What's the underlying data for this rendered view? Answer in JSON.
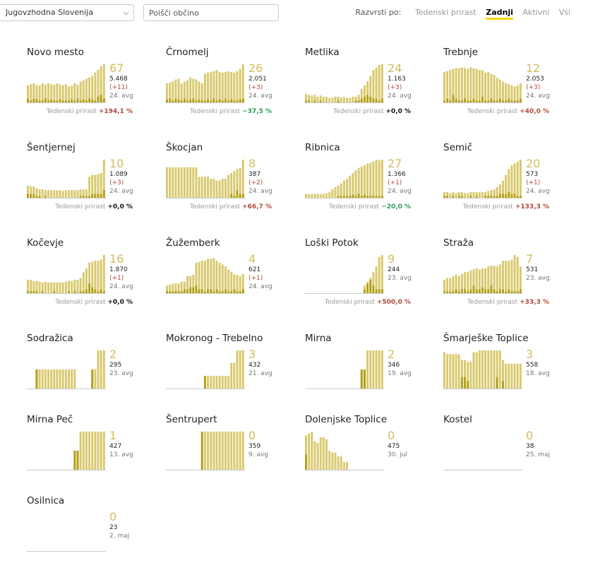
{
  "toolbar": {
    "region": "Jugovzhodna Slovenija",
    "search_placeholder": "Poišči občino",
    "sort_label": "Razvrsti po:",
    "sort_options": [
      {
        "label": "Tedenski prirast",
        "active": false
      },
      {
        "label": "Zadnji",
        "active": true
      },
      {
        "label": "Aktivni",
        "active": false
      },
      {
        "label": "Vsi",
        "active": false
      }
    ]
  },
  "growth_label": "Tedenski prirast",
  "colors": {
    "bar_light": "#d8c96e",
    "bar_dark": "#b59f16",
    "baseline": "#cccccc",
    "big_number": "#d4bc5d"
  },
  "municipalities": [
    {
      "name": "Novo mesto",
      "active": "67",
      "total": "5.468",
      "delta": "(+11)",
      "date": "24. avg",
      "growth": "+194,1 %",
      "bars": [
        0.45,
        0.48,
        0.5,
        0.46,
        0.44,
        0.5,
        0.47,
        0.5,
        0.48,
        0.46,
        0.5,
        0.47,
        0.45,
        0.48,
        0.42,
        0.44,
        0.5,
        0.46,
        0.55,
        0.58,
        0.62,
        0.65,
        0.7,
        0.78,
        0.86,
        0.95,
        1.0
      ],
      "dark": [
        0.1,
        0.05,
        0.1,
        0.08,
        0.05,
        0.05,
        0.1,
        0.05,
        0.08,
        0.05,
        0.05,
        0.08,
        0.05,
        0.05,
        0.05,
        0.08,
        0.05,
        0.1,
        0.05,
        0.08,
        0.05,
        0.1,
        0.08,
        0.05,
        0.15,
        0.2,
        0.1
      ]
    },
    {
      "name": "Črnomelj",
      "active": "26",
      "total": "2.051",
      "delta": "(+3)",
      "date": "24. avg",
      "growth": "−37,5 %",
      "bars": [
        0.5,
        0.52,
        0.55,
        0.6,
        0.62,
        0.5,
        0.55,
        0.58,
        0.65,
        0.62,
        0.6,
        0.55,
        0.5,
        0.75,
        0.78,
        0.8,
        0.82,
        0.85,
        0.8,
        0.78,
        0.8,
        0.82,
        0.8,
        0.78,
        0.82,
        0.88,
        1.0
      ],
      "dark": [
        0.08,
        0.1,
        0.05,
        0.1,
        0.08,
        0.05,
        0.1,
        0.05,
        0.08,
        0.1,
        0.05,
        0.08,
        0.05,
        0.05,
        0.08,
        0.05,
        0.1,
        0.05,
        0.08,
        0.05,
        0.1,
        0.05,
        0.08,
        0.05,
        0.05,
        0.08,
        0.1
      ]
    },
    {
      "name": "Metlika",
      "active": "24",
      "total": "1.163",
      "delta": "(+3)",
      "date": "24. avg",
      "growth": "+0,0 %",
      "bars": [
        0.22,
        0.2,
        0.18,
        0.2,
        0.15,
        0.18,
        0.15,
        0.15,
        0.12,
        0.12,
        0.15,
        0.15,
        0.12,
        0.15,
        0.12,
        0.12,
        0.15,
        0.15,
        0.2,
        0.35,
        0.45,
        0.55,
        0.7,
        0.85,
        0.92,
        0.98,
        1.0
      ],
      "dark": [
        0.05,
        0.05,
        0,
        0.05,
        0,
        0.05,
        0,
        0,
        0,
        0,
        0,
        0.05,
        0,
        0,
        0,
        0,
        0,
        0.05,
        0.05,
        0.1,
        0.15,
        0.2,
        0.15,
        0.1,
        0.1,
        0.05,
        0.1
      ]
    },
    {
      "name": "Trebnje",
      "active": "12",
      "total": "2.053",
      "delta": "(+3)",
      "date": "24. avg",
      "growth": "+40,0 %",
      "bars": [
        0.8,
        0.82,
        0.85,
        0.88,
        0.9,
        0.9,
        0.92,
        0.9,
        0.88,
        0.92,
        0.9,
        0.88,
        0.85,
        0.85,
        0.78,
        0.8,
        0.75,
        0.72,
        0.65,
        0.6,
        0.55,
        0.5,
        0.48,
        0.45,
        0.42,
        0.45,
        0.5
      ],
      "dark": [
        0.05,
        0.1,
        0.05,
        0.2,
        0.1,
        0.05,
        0.05,
        0.1,
        0.05,
        0.05,
        0.1,
        0.05,
        0.05,
        0.15,
        0.05,
        0.05,
        0.1,
        0.05,
        0.05,
        0.1,
        0.05,
        0.05,
        0.1,
        0.05,
        0.05,
        0.05,
        0.1
      ]
    },
    {
      "name": "Šentjernej",
      "active": "10",
      "total": "1.089",
      "delta": "(+3)",
      "date": "24. avg",
      "growth": "+0,0 %",
      "bars": [
        0.32,
        0.3,
        0.3,
        0.25,
        0.22,
        0.22,
        0.2,
        0.2,
        0.2,
        0.2,
        0.2,
        0.2,
        0.18,
        0.2,
        0.2,
        0.2,
        0.2,
        0.2,
        0.22,
        0.22,
        0.22,
        0.55,
        0.6,
        0.6,
        0.62,
        0.65,
        1.0
      ],
      "dark": [
        0.1,
        0.1,
        0.1,
        0.05,
        0.05,
        0,
        0.05,
        0,
        0,
        0,
        0,
        0,
        0,
        0,
        0,
        0,
        0,
        0,
        0.05,
        0.05,
        0.05,
        0.05,
        0.1,
        0.1,
        0.1,
        0.1,
        0.2
      ]
    },
    {
      "name": "Škocjan",
      "active": "8",
      "total": "387",
      "delta": "(+2)",
      "date": "24. avg",
      "growth": "+66,7 %",
      "bars": [
        0.8,
        0.8,
        0.8,
        0.8,
        0.8,
        0.8,
        0.8,
        0.8,
        0.8,
        0.8,
        0.8,
        0.55,
        0.55,
        0.55,
        0.55,
        0.5,
        0.5,
        0.45,
        0.45,
        0.5,
        0.5,
        0.6,
        0.65,
        0.7,
        0.75,
        0.78,
        1.0
      ],
      "dark": [
        0,
        0,
        0,
        0,
        0,
        0,
        0,
        0,
        0,
        0,
        0,
        0,
        0,
        0,
        0,
        0,
        0,
        0,
        0,
        0,
        0,
        0,
        0.1,
        0.05,
        0.2,
        0.1,
        0.1
      ]
    },
    {
      "name": "Ribnica",
      "active": "27",
      "total": "1.366",
      "delta": "(+1)",
      "date": "24. avg",
      "growth": "−20,0 %",
      "bars": [
        0.1,
        0.1,
        0.1,
        0.1,
        0.1,
        0.1,
        0.1,
        0.12,
        0.15,
        0.22,
        0.28,
        0.32,
        0.38,
        0.45,
        0.5,
        0.58,
        0.65,
        0.72,
        0.78,
        0.82,
        0.85,
        0.9,
        0.92,
        0.95,
        1.0,
        0.98,
        1.0
      ],
      "dark": [
        0,
        0,
        0,
        0,
        0,
        0,
        0,
        0,
        0,
        0,
        0,
        0.05,
        0.05,
        0.05,
        0.05,
        0.05,
        0.08,
        0.05,
        0.1,
        0.05,
        0.08,
        0.05,
        0.05,
        0.05,
        0.05,
        0.05,
        0.05
      ]
    },
    {
      "name": "Semič",
      "active": "20",
      "total": "573",
      "delta": "(+1)",
      "date": "24. avg",
      "growth": "+133,3 %",
      "bars": [
        0.15,
        0.15,
        0.12,
        0.15,
        0.12,
        0.15,
        0.15,
        0.12,
        0.12,
        0.15,
        0.15,
        0.15,
        0.15,
        0.15,
        0.15,
        0.18,
        0.2,
        0.22,
        0.28,
        0.35,
        0.45,
        0.6,
        0.75,
        0.85,
        0.9,
        0.95,
        1.0
      ],
      "dark": [
        0.05,
        0.05,
        0,
        0.05,
        0,
        0.05,
        0.05,
        0,
        0,
        0.05,
        0,
        0.05,
        0,
        0,
        0.05,
        0.05,
        0.05,
        0.05,
        0.05,
        0.1,
        0.1,
        0.1,
        0.15,
        0.1,
        0.1,
        0.05,
        0.05
      ]
    },
    {
      "name": "Kočevje",
      "active": "16",
      "total": "1.870",
      "delta": "(+1)",
      "date": "24. avg",
      "growth": "+0,0 %",
      "bars": [
        0.35,
        0.35,
        0.32,
        0.32,
        0.3,
        0.28,
        0.3,
        0.28,
        0.28,
        0.28,
        0.28,
        0.28,
        0.28,
        0.3,
        0.32,
        0.32,
        0.35,
        0.35,
        0.4,
        0.55,
        0.65,
        0.8,
        0.82,
        0.85,
        0.85,
        0.88,
        1.0
      ],
      "dark": [
        0.05,
        0.05,
        0.05,
        0.05,
        0,
        0.05,
        0,
        0,
        0,
        0.05,
        0,
        0,
        0,
        0,
        0.05,
        0,
        0.05,
        0,
        0.05,
        0.05,
        0.1,
        0.25,
        0.15,
        0.1,
        0.05,
        0.1,
        0.05
      ]
    },
    {
      "name": "Žužemberk",
      "active": "4",
      "total": "621",
      "delta": "(+1)",
      "date": "24. avg",
      "growth": "",
      "bars": [
        0.2,
        0.22,
        0.25,
        0.25,
        0.25,
        0.3,
        0.3,
        0.45,
        0.45,
        0.48,
        0.8,
        0.82,
        0.85,
        0.85,
        0.9,
        0.9,
        0.92,
        0.85,
        0.8,
        0.75,
        0.7,
        0.62,
        0.55,
        0.5,
        0.48,
        0.45,
        0.5
      ],
      "dark": [
        0.05,
        0.05,
        0.05,
        0.05,
        0.05,
        0.05,
        0.1,
        0.1,
        0.15,
        0.15,
        0.2,
        0.1,
        0.1,
        0.05,
        0.1,
        0.1,
        0.05,
        0.1,
        0.05,
        0.05,
        0.1,
        0.05,
        0.05,
        0.1,
        0.05,
        0.05,
        0.1
      ]
    },
    {
      "name": "Loški Potok",
      "active": "9",
      "total": "244",
      "delta": "",
      "date": "23. avg",
      "growth": "+500,0 %",
      "bars": [
        0,
        0,
        0,
        0,
        0,
        0,
        0,
        0,
        0,
        0,
        0,
        0,
        0,
        0,
        0,
        0,
        0,
        0,
        0,
        0,
        0.2,
        0.3,
        0.4,
        0.55,
        0.7,
        0.95,
        1.0
      ],
      "dark": [
        0,
        0,
        0,
        0,
        0,
        0,
        0,
        0,
        0,
        0,
        0,
        0,
        0,
        0,
        0,
        0,
        0,
        0,
        0,
        0,
        0.1,
        0.25,
        0.35,
        0.2,
        0.1,
        0.1,
        0.1
      ]
    },
    {
      "name": "Straža",
      "active": "7",
      "total": "531",
      "delta": "",
      "date": "23. avg",
      "growth": "+33,3 %",
      "bars": [
        0.35,
        0.4,
        0.4,
        0.45,
        0.48,
        0.45,
        0.5,
        0.55,
        0.55,
        0.6,
        0.62,
        0.65,
        0.62,
        0.65,
        0.65,
        0.7,
        0.72,
        0.72,
        0.7,
        0.75,
        0.85,
        0.85,
        0.85,
        0.88,
        1.0,
        0.95,
        0.7
      ],
      "dark": [
        0.05,
        0.05,
        0.05,
        0.05,
        0.1,
        0.05,
        0.1,
        0.1,
        0.05,
        0.1,
        0.2,
        0.1,
        0.1,
        0.15,
        0.1,
        0.1,
        0.2,
        0.1,
        0.05,
        0.1,
        0.1,
        0.05,
        0.1,
        0.05,
        0.05,
        0.05,
        0.1
      ]
    },
    {
      "name": "Sodražica",
      "active": "2",
      "total": "295",
      "delta": "",
      "date": "23. avg",
      "growth": "",
      "bars": [
        0,
        0,
        0,
        0.5,
        0.5,
        0.5,
        0.5,
        0.5,
        0.5,
        0.5,
        0.5,
        0.5,
        0.5,
        0.5,
        0.5,
        0.5,
        0.5,
        0,
        0,
        0,
        0,
        0,
        0.5,
        0.5,
        1.0,
        1.0,
        1.0
      ],
      "dark": [
        0,
        0,
        0,
        0.5,
        0,
        0,
        0,
        0,
        0,
        0,
        0,
        0,
        0,
        0,
        0,
        0,
        0,
        0,
        0,
        0,
        0,
        0,
        0.5,
        0,
        0,
        0,
        0
      ]
    },
    {
      "name": "Mokronog - Trebelno",
      "active": "3",
      "total": "432",
      "delta": "",
      "date": "21. avg",
      "growth": "",
      "bars": [
        0,
        0,
        0,
        0,
        0,
        0,
        0,
        0,
        0,
        0,
        0,
        0,
        0,
        0.33,
        0.33,
        0.33,
        0.33,
        0.33,
        0.33,
        0.33,
        0.33,
        0.33,
        0.67,
        0.67,
        1.0,
        1.0,
        1.0
      ],
      "dark": [
        0,
        0,
        0,
        0,
        0,
        0,
        0,
        0,
        0,
        0,
        0,
        0,
        0,
        0.33,
        0,
        0,
        0,
        0,
        0,
        0,
        0,
        0,
        0,
        0,
        0,
        0,
        0
      ]
    },
    {
      "name": "Mirna",
      "active": "2",
      "total": "346",
      "delta": "",
      "date": "19. avg",
      "growth": "",
      "bars": [
        0,
        0,
        0,
        0,
        0,
        0,
        0,
        0,
        0,
        0,
        0,
        0,
        0,
        0,
        0,
        0,
        0,
        0,
        0,
        0.5,
        0.5,
        1.0,
        1.0,
        1.0,
        1.0,
        1.0,
        1.0
      ],
      "dark": [
        0,
        0,
        0,
        0,
        0,
        0,
        0,
        0,
        0,
        0,
        0,
        0,
        0,
        0,
        0,
        0,
        0,
        0,
        0,
        0.5,
        0.5,
        0,
        0,
        0,
        0,
        0,
        0
      ]
    },
    {
      "name": "Šmarješke Toplice",
      "active": "3",
      "total": "558",
      "delta": "",
      "date": "18. avg",
      "growth": "",
      "bars": [
        0.95,
        0.9,
        0.9,
        0.9,
        0.9,
        0.9,
        0.75,
        0.75,
        0.7,
        0.7,
        0.95,
        0.95,
        1.0,
        1.0,
        1.0,
        1.0,
        1.0,
        1.0,
        1.0,
        1.0,
        0.75,
        0.65,
        0.65,
        0.65,
        0.65,
        0.65,
        0.65
      ],
      "dark": [
        0,
        0,
        0,
        0,
        0,
        0,
        0.3,
        0.3,
        0.2,
        0,
        0,
        0,
        0,
        0,
        0,
        0,
        0,
        0,
        0.3,
        0,
        0.2,
        0,
        0,
        0,
        0,
        0,
        0
      ]
    },
    {
      "name": "Mirna Peč",
      "active": "1",
      "total": "427",
      "delta": "",
      "date": "13. avg",
      "growth": "",
      "bars": [
        0,
        0,
        0,
        0,
        0,
        0,
        0,
        0,
        0,
        0,
        0,
        0,
        0,
        0,
        0,
        0,
        0.5,
        0.5,
        1.0,
        1.0,
        1.0,
        1.0,
        1.0,
        1.0,
        1.0,
        1.0,
        1.0
      ],
      "dark": [
        0,
        0,
        0,
        0,
        0,
        0,
        0,
        0,
        0,
        0,
        0,
        0,
        0,
        0,
        0,
        0,
        0.5,
        0.5,
        0,
        0,
        0,
        0,
        0,
        0,
        0,
        0,
        0
      ]
    },
    {
      "name": "Šentrupert",
      "active": "0",
      "total": "359",
      "delta": "",
      "date": "9. avg",
      "growth": "",
      "bars": [
        0,
        0,
        0,
        0,
        0,
        0,
        0,
        0,
        0,
        0,
        0,
        0,
        1.0,
        1.0,
        1.0,
        1.0,
        1.0,
        1.0,
        1.0,
        1.0,
        1.0,
        1.0,
        1.0,
        1.0,
        1.0,
        1.0,
        1.0
      ],
      "dark": [
        0,
        0,
        0,
        0,
        0,
        0,
        0,
        0,
        0,
        0,
        0,
        0,
        1.0,
        0,
        0,
        0,
        0,
        0,
        0,
        0,
        0,
        0,
        0,
        0,
        0,
        0,
        0
      ]
    },
    {
      "name": "Dolenjske Toplice",
      "active": "0",
      "total": "475",
      "delta": "",
      "date": "30. jul",
      "growth": "",
      "bars": [
        0.9,
        0.95,
        1.0,
        0.75,
        0.7,
        0.85,
        0.85,
        0.8,
        0.5,
        0.45,
        0.45,
        0.35,
        0.35,
        0.2,
        0.2,
        0,
        0,
        0,
        0,
        0,
        0,
        0,
        0,
        0,
        0,
        0,
        0
      ],
      "dark": [
        0.4,
        0,
        0,
        0,
        0,
        0,
        0,
        0,
        0,
        0,
        0,
        0,
        0,
        0,
        0,
        0,
        0,
        0,
        0,
        0,
        0,
        0,
        0,
        0,
        0,
        0,
        0
      ]
    },
    {
      "name": "Kostel",
      "active": "0",
      "total": "38",
      "delta": "",
      "date": "25. maj",
      "growth": "",
      "bars": [],
      "dark": []
    },
    {
      "name": "Osilnica",
      "active": "0",
      "total": "23",
      "delta": "",
      "date": "2. maj",
      "growth": "",
      "bars": [],
      "dark": []
    }
  ]
}
